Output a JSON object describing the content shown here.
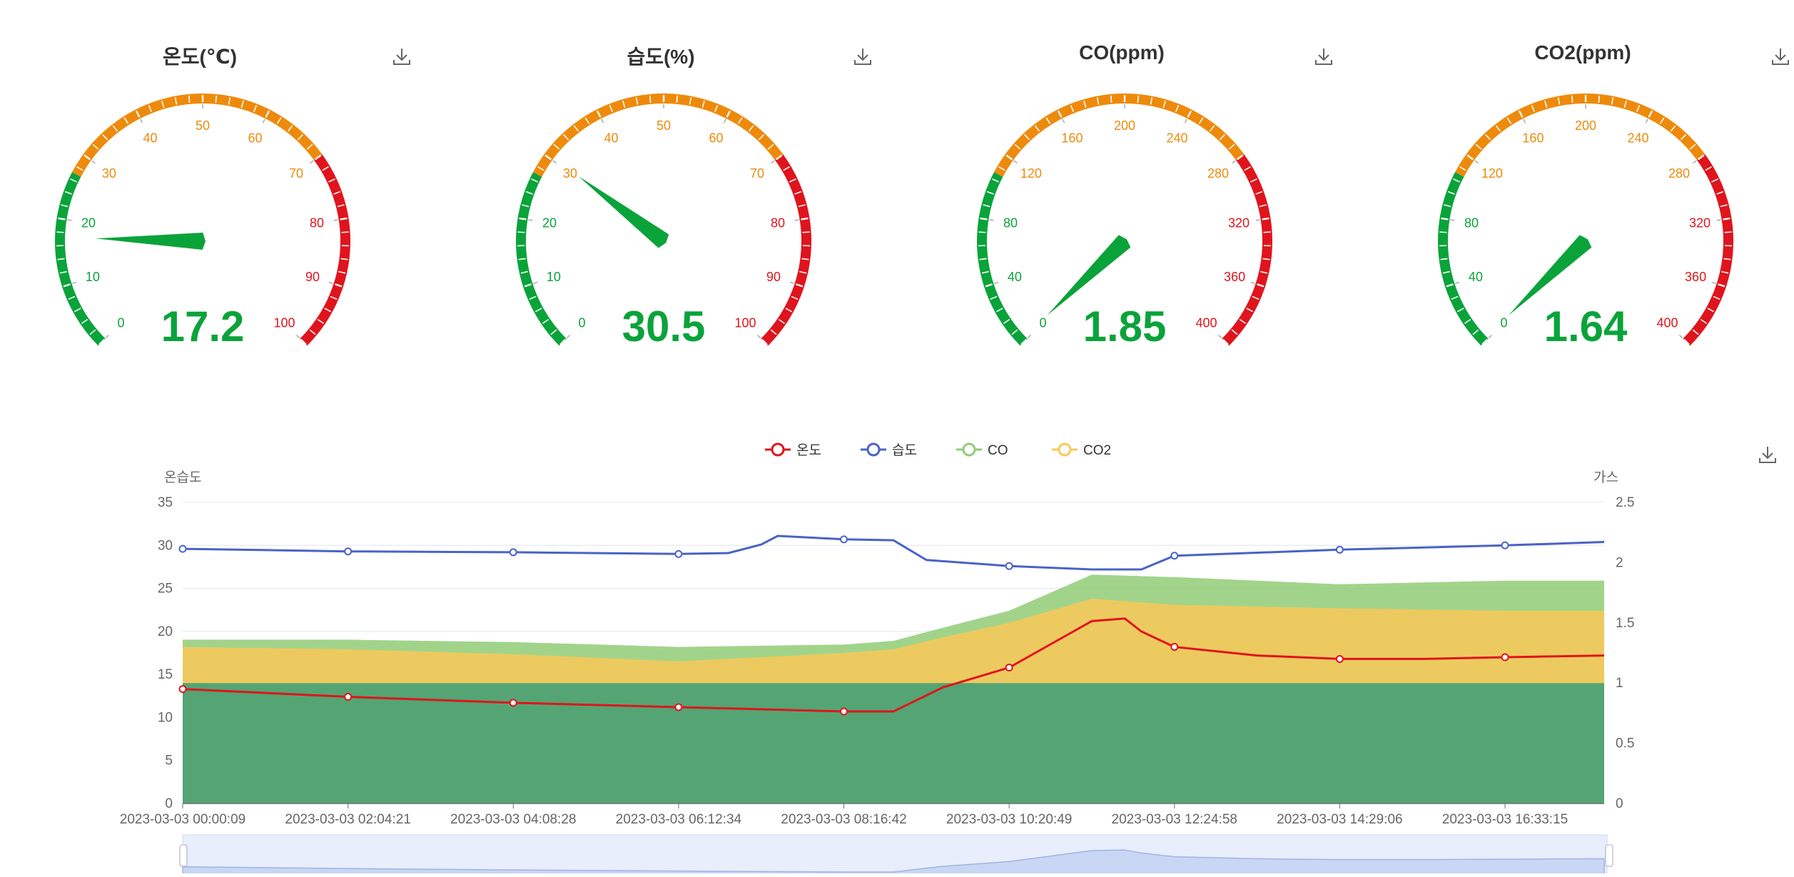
{
  "gauges": [
    {
      "title": "온도(℃)",
      "value": 17.2,
      "value_text": "17.2",
      "min": 0,
      "max": 100,
      "ticks": [
        "0",
        "10",
        "20",
        "30",
        "40",
        "50",
        "60",
        "70",
        "80",
        "90",
        "100"
      ],
      "download_label": "download-icon"
    },
    {
      "title": "습도(%)",
      "value": 30.5,
      "value_text": "30.5",
      "min": 0,
      "max": 100,
      "ticks": [
        "0",
        "10",
        "20",
        "30",
        "40",
        "50",
        "60",
        "70",
        "80",
        "90",
        "100"
      ],
      "download_label": "download-icon"
    },
    {
      "title": "CO(ppm)",
      "value": 1.85,
      "value_text": "1.85",
      "min": 0,
      "max": 400,
      "ticks": [
        "0",
        "40",
        "80",
        "120",
        "160",
        "200",
        "240",
        "280",
        "320",
        "360",
        "400"
      ],
      "download_label": "download-icon"
    },
    {
      "title": "CO2(ppm)",
      "value": 1.64,
      "value_text": "1.64",
      "min": 0,
      "max": 400,
      "ticks": [
        "0",
        "40",
        "80",
        "120",
        "160",
        "200",
        "240",
        "280",
        "320",
        "360",
        "400"
      ],
      "download_label": "download-icon"
    }
  ],
  "colors": {
    "green": "#0aa33a",
    "orange": "#ee8a0b",
    "red": "#e0141c",
    "temp": "#e0141c",
    "humid": "#4a63c4",
    "co": "#91cc75",
    "co2": "#fac858",
    "base": "#3f9f75",
    "value_text": "#0aa33a"
  },
  "chart_data": {
    "type": "line",
    "legend": [
      "온도",
      "습도",
      "CO",
      "CO2"
    ],
    "left_axis_label": "온습도",
    "right_axis_label": "가스",
    "left_ticks": [
      "0",
      "5",
      "10",
      "15",
      "20",
      "25",
      "30",
      "35"
    ],
    "right_ticks": [
      "0",
      "0.5",
      "1",
      "1.5",
      "2",
      "2.5"
    ],
    "left_ylim": [
      0,
      35
    ],
    "right_ylim": [
      0,
      2.5
    ],
    "x_labels": [
      "2023-03-03 00:00:09",
      "2023-03-03 02:04:21",
      "2023-03-03 04:08:28",
      "2023-03-03 06:12:34",
      "2023-03-03 08:16:42",
      "2023-03-03 10:20:49",
      "2023-03-03 12:24:58",
      "2023-03-03 14:29:06",
      "2023-03-03 16:33:15"
    ],
    "x_range": [
      0,
      8.6
    ],
    "series": [
      {
        "name": "온도",
        "axis": "left",
        "x": [
          0,
          1,
          2,
          3,
          4,
          4.3,
          4.6,
          5,
          5.5,
          5.7,
          5.8,
          6,
          6.5,
          7,
          7.5,
          8,
          8.6
        ],
        "values": [
          13.3,
          12.4,
          11.7,
          11.2,
          10.7,
          10.7,
          13.5,
          15.8,
          21.2,
          21.5,
          20,
          18.2,
          17.2,
          16.8,
          16.8,
          17,
          17.2
        ]
      },
      {
        "name": "습도",
        "axis": "left",
        "x": [
          0,
          1,
          2,
          3,
          3.3,
          3.5,
          3.6,
          4,
          4.3,
          4.5,
          5,
          5.5,
          5.8,
          6,
          7,
          8,
          8.6
        ],
        "values": [
          29.6,
          29.3,
          29.2,
          29,
          29.1,
          30.1,
          31.1,
          30.7,
          30.6,
          28.3,
          27.6,
          27.2,
          27.2,
          28.8,
          29.5,
          30,
          30.4
        ]
      },
      {
        "name": "CO",
        "axis": "right",
        "x": [
          0,
          1,
          2,
          3,
          4,
          4.3,
          4.6,
          5,
          5.5,
          6,
          7,
          8,
          8.6
        ],
        "values": [
          1.36,
          1.36,
          1.34,
          1.3,
          1.32,
          1.35,
          1.46,
          1.6,
          1.9,
          1.88,
          1.82,
          1.85,
          1.85
        ]
      },
      {
        "name": "CO2",
        "axis": "right",
        "x": [
          0,
          1,
          2,
          3,
          4,
          4.3,
          4.6,
          5,
          5.5,
          6,
          7,
          8,
          8.6
        ],
        "values": [
          1.3,
          1.28,
          1.24,
          1.18,
          1.25,
          1.28,
          1.38,
          1.5,
          1.7,
          1.65,
          1.62,
          1.6,
          1.6
        ]
      },
      {
        "name": "base",
        "axis": "right",
        "x": [
          0,
          8.6
        ],
        "values": [
          1.0,
          1.0
        ]
      }
    ],
    "zoom_window": [
      0,
      1
    ]
  }
}
